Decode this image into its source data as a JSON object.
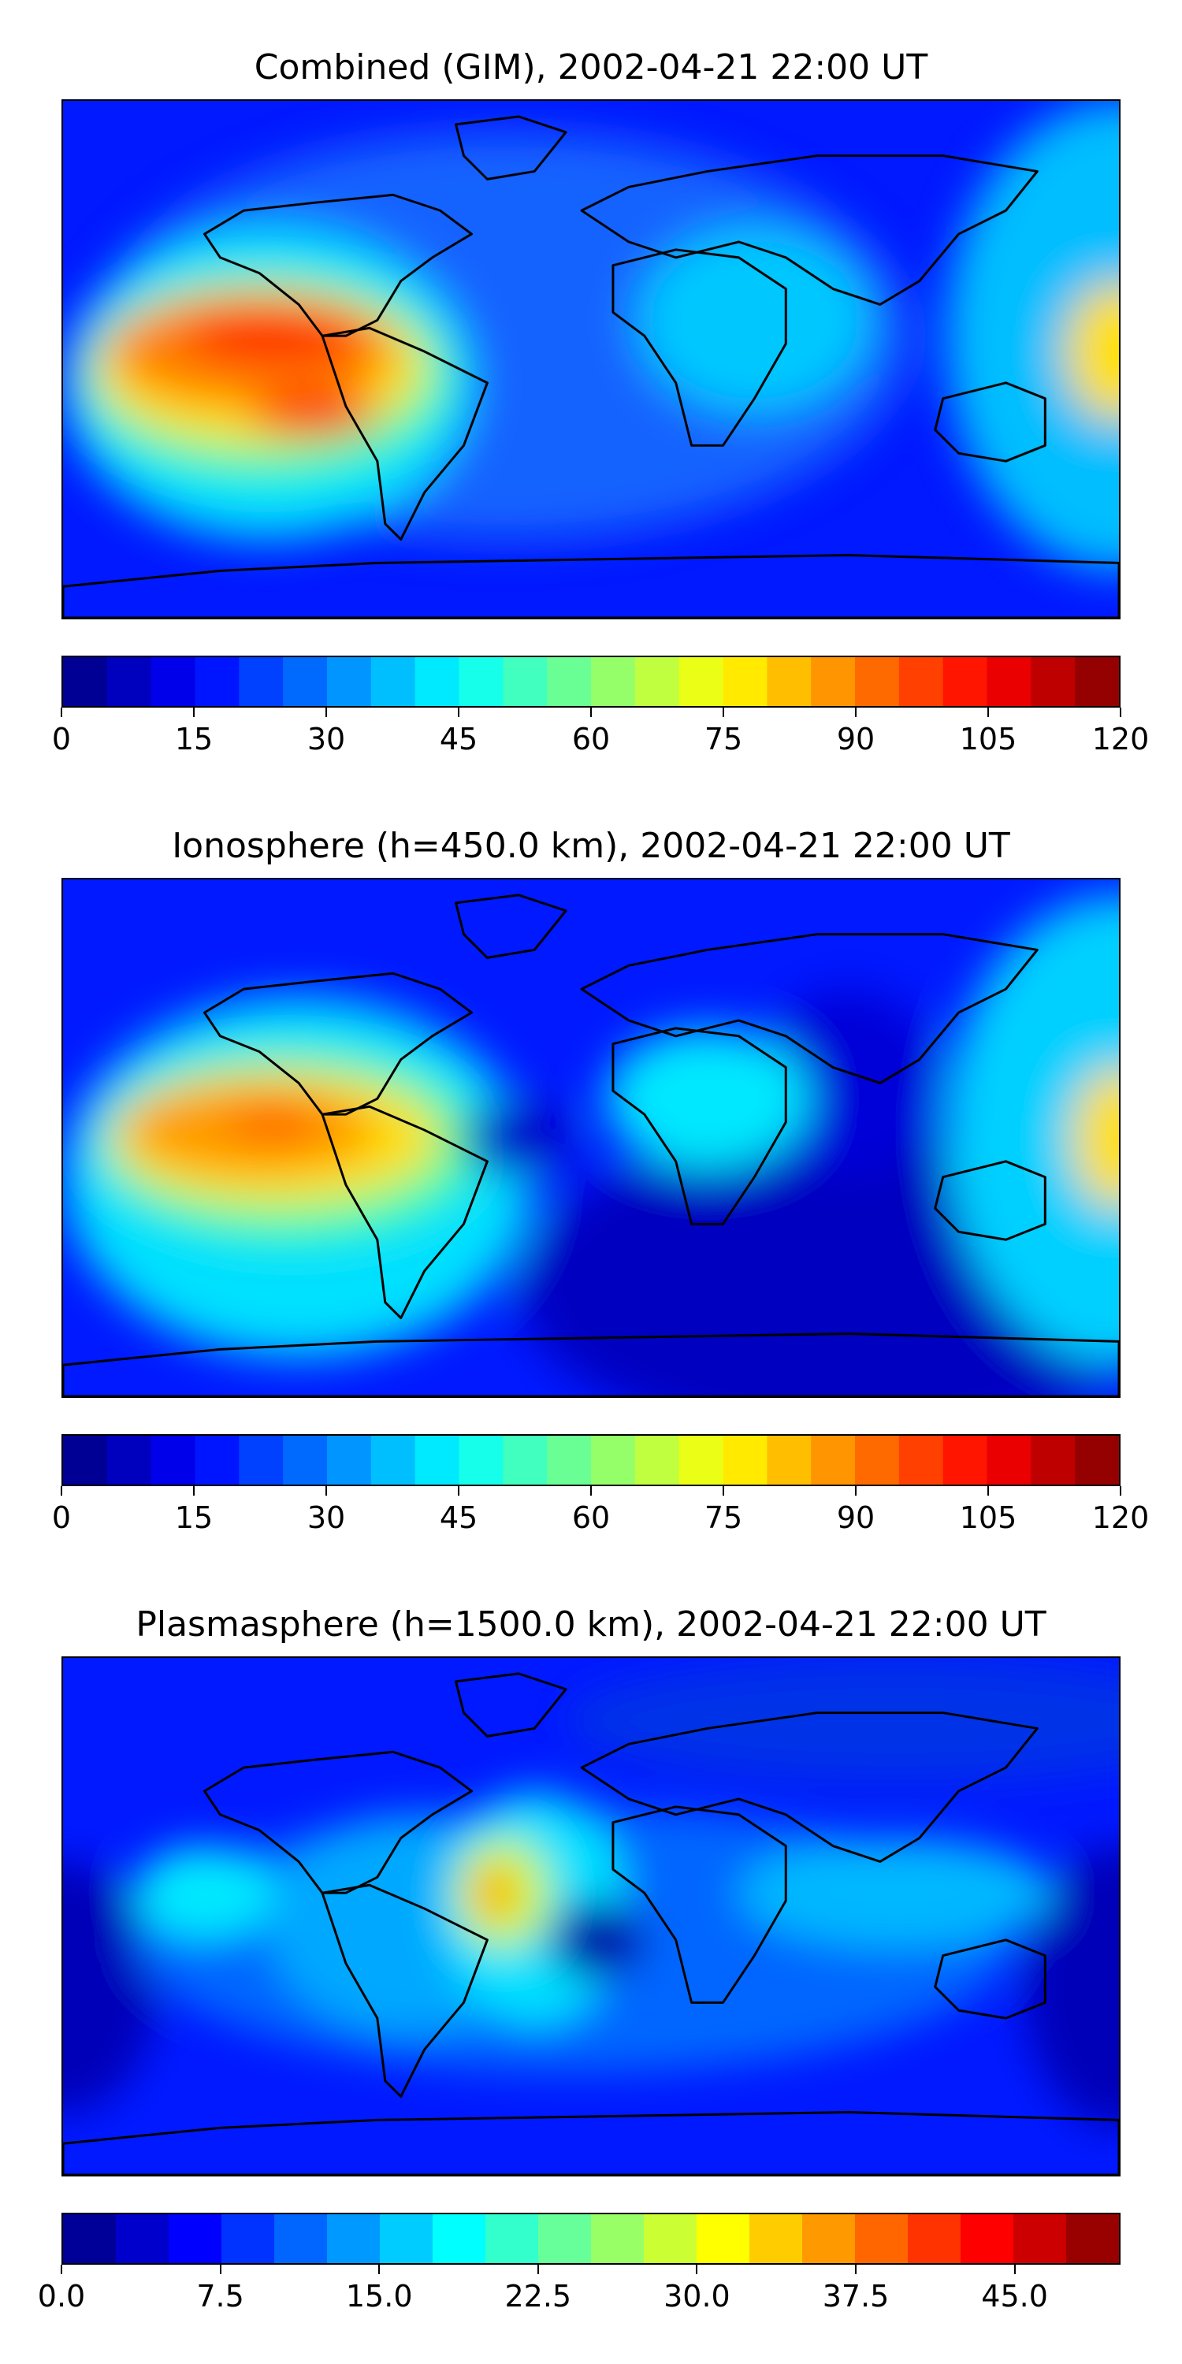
{
  "panels": [
    {
      "title": "Combined (GIM), 2002-04-21 22:00 UT",
      "map_kind": "combined",
      "colorbar": {
        "min": 0,
        "max": 120,
        "levels": 24,
        "ticks": [
          "0",
          "15",
          "30",
          "45",
          "60",
          "75",
          "90",
          "105",
          "120"
        ]
      }
    },
    {
      "title": "Ionosphere  (h=450.0 km), 2002-04-21 22:00 UT",
      "map_kind": "ionosphere",
      "colorbar": {
        "min": 0,
        "max": 120,
        "levels": 24,
        "ticks": [
          "0",
          "15",
          "30",
          "45",
          "60",
          "75",
          "90",
          "105",
          "120"
        ]
      }
    },
    {
      "title": "Plasmasphere (h=1500.0 km), 2002-04-21 22:00 UT",
      "map_kind": "plasmasphere",
      "colorbar": {
        "min": 0,
        "max": 50,
        "levels": 20,
        "ticks": [
          "0.0",
          "7.5",
          "15.0",
          "22.5",
          "30.0",
          "37.5",
          "45.0"
        ]
      }
    }
  ],
  "colormap": "jet",
  "coastline_color": "#000000"
}
